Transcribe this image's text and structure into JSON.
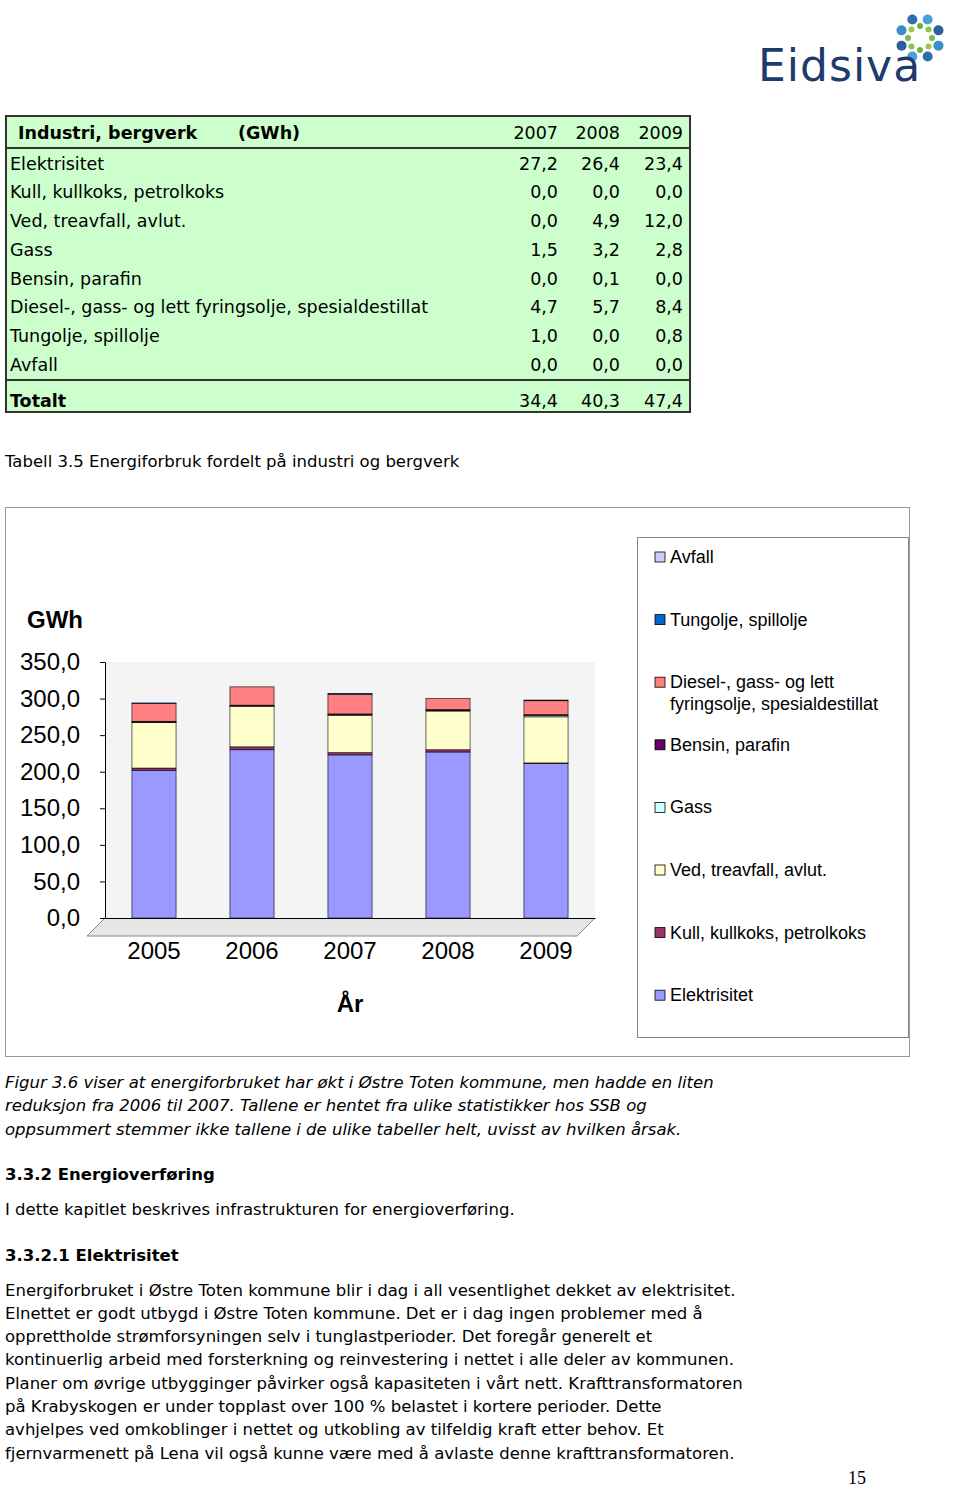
{
  "header": {
    "logo": "Eidsiva"
  },
  "table": {
    "title": "Industri, bergverk",
    "unit": "(GWh)",
    "years": [
      "2007",
      "2008",
      "2009"
    ],
    "rows": [
      [
        "Elektrisitet",
        "27,2",
        "26,4",
        "23,4"
      ],
      [
        "Kull, kullkoks, petrolkoks",
        "0,0",
        "0,0",
        "0,0"
      ],
      [
        "Ved, treavfall, avlut.",
        "0,0",
        "4,9",
        "12,0"
      ],
      [
        "Gass",
        "1,5",
        "3,2",
        "2,8"
      ],
      [
        "Bensin, parafin",
        "0,0",
        "0,1",
        "0,0"
      ],
      [
        "Diesel-, gass- og lett fyringsolje, spesialdestillat",
        "4,7",
        "5,7",
        "8,4"
      ],
      [
        "Tungolje, spillolje",
        "1,0",
        "0,0",
        "0,8"
      ],
      [
        "Avfall",
        "0,0",
        "0,0",
        "0,0"
      ]
    ],
    "total": [
      "Totalt",
      "34,4",
      "40,3",
      "47,4"
    ]
  },
  "table_caption": "Tabell 3.5 Energiforbruk fordelt på industri og bergverk",
  "chart_data": {
    "type": "bar",
    "stacked": true,
    "legend": "right",
    "x_label": "År",
    "y_label": "GWh",
    "categories": [
      "2005",
      "2006",
      "2007",
      "2008",
      "2009"
    ],
    "ylim": [
      0,
      350
    ],
    "yticks": [
      {
        "value": 0,
        "label": "0,0"
      },
      {
        "value": 50,
        "label": "50,0"
      },
      {
        "value": 100,
        "label": "100,0"
      },
      {
        "value": 150,
        "label": "150,0"
      },
      {
        "value": 200,
        "label": "200,0"
      },
      {
        "value": 250,
        "label": "250,0"
      },
      {
        "value": 300,
        "label": "300,0"
      },
      {
        "value": 350,
        "label": "350,0"
      }
    ],
    "series": [
      {
        "name": "Elektrisitet",
        "color": "#9999FF",
        "values": [
          202,
          230,
          223,
          227,
          211
        ]
      },
      {
        "name": "Kull, kullkoks, petrolkoks",
        "color": "#993366",
        "values": [
          3,
          4,
          3,
          3,
          1
        ]
      },
      {
        "name": "Ved, treavfall, avlut.",
        "color": "#FFFFCC",
        "values": [
          62,
          55,
          51,
          53,
          63
        ]
      },
      {
        "name": "Gass",
        "color": "#CCFFFF",
        "values": [
          1,
          1,
          1,
          1,
          2
        ]
      },
      {
        "name": "Bensin, parafin",
        "color": "#660066",
        "values": [
          1,
          1,
          1,
          1,
          1
        ]
      },
      {
        "name": "Diesel-, gass- og lett fyringsolje, spesialdestillat",
        "color": "#FF8080",
        "values": [
          24,
          25,
          27,
          15,
          19
        ]
      },
      {
        "name": "Tungolje, spillolje",
        "color": "#0066CC",
        "values": [
          1,
          0,
          1,
          0,
          1
        ]
      },
      {
        "name": "Avfall",
        "color": "#CCCCFF",
        "values": [
          0,
          0,
          0,
          0,
          0
        ]
      }
    ]
  },
  "figure_caption": [
    "Figur 3.6 viser at energiforbruket har økt i Østre Toten kommune, men hadde en liten",
    "reduksjon fra 2006 til 2007. Tallene er hentet fra ulike statistikker hos SSB og",
    "oppsummert stemmer ikke tallene i de ulike tabeller helt, uvisst av hvilken årsak."
  ],
  "sections": [
    {
      "heading": "3.3.2 Energioverføring",
      "lines": [
        "I dette kapitlet beskrives infrastrukturen for energioverføring."
      ]
    },
    {
      "heading": "3.3.2.1 Elektrisitet",
      "lines": [
        "Energiforbruket i Østre Toten kommune blir i dag i all vesentlighet dekket av elektrisitet.",
        "Elnettet er godt utbygd i Østre Toten kommune. Det er i dag ingen problemer med å",
        "opprettholde strømforsyningen selv i tunglastperioder. Det foregår generelt et",
        "kontinuerlig arbeid med forsterkning og reinvestering i nettet i alle deler av kommunen.",
        "Planer om øvrige utbygginger påvirker også kapasiteten i vårt nett. Krafttransformatoren",
        "på Krabyskogen er under topplast over 100 % belastet i kortere perioder. Dette",
        "avhjelpes ved omkoblinger i nettet og utkobling av tilfeldig kraft etter behov. Et",
        "fjernvarmenett på Lena vil også kunne være med å avlaste denne krafttransformatoren."
      ]
    }
  ],
  "page_number": "15"
}
